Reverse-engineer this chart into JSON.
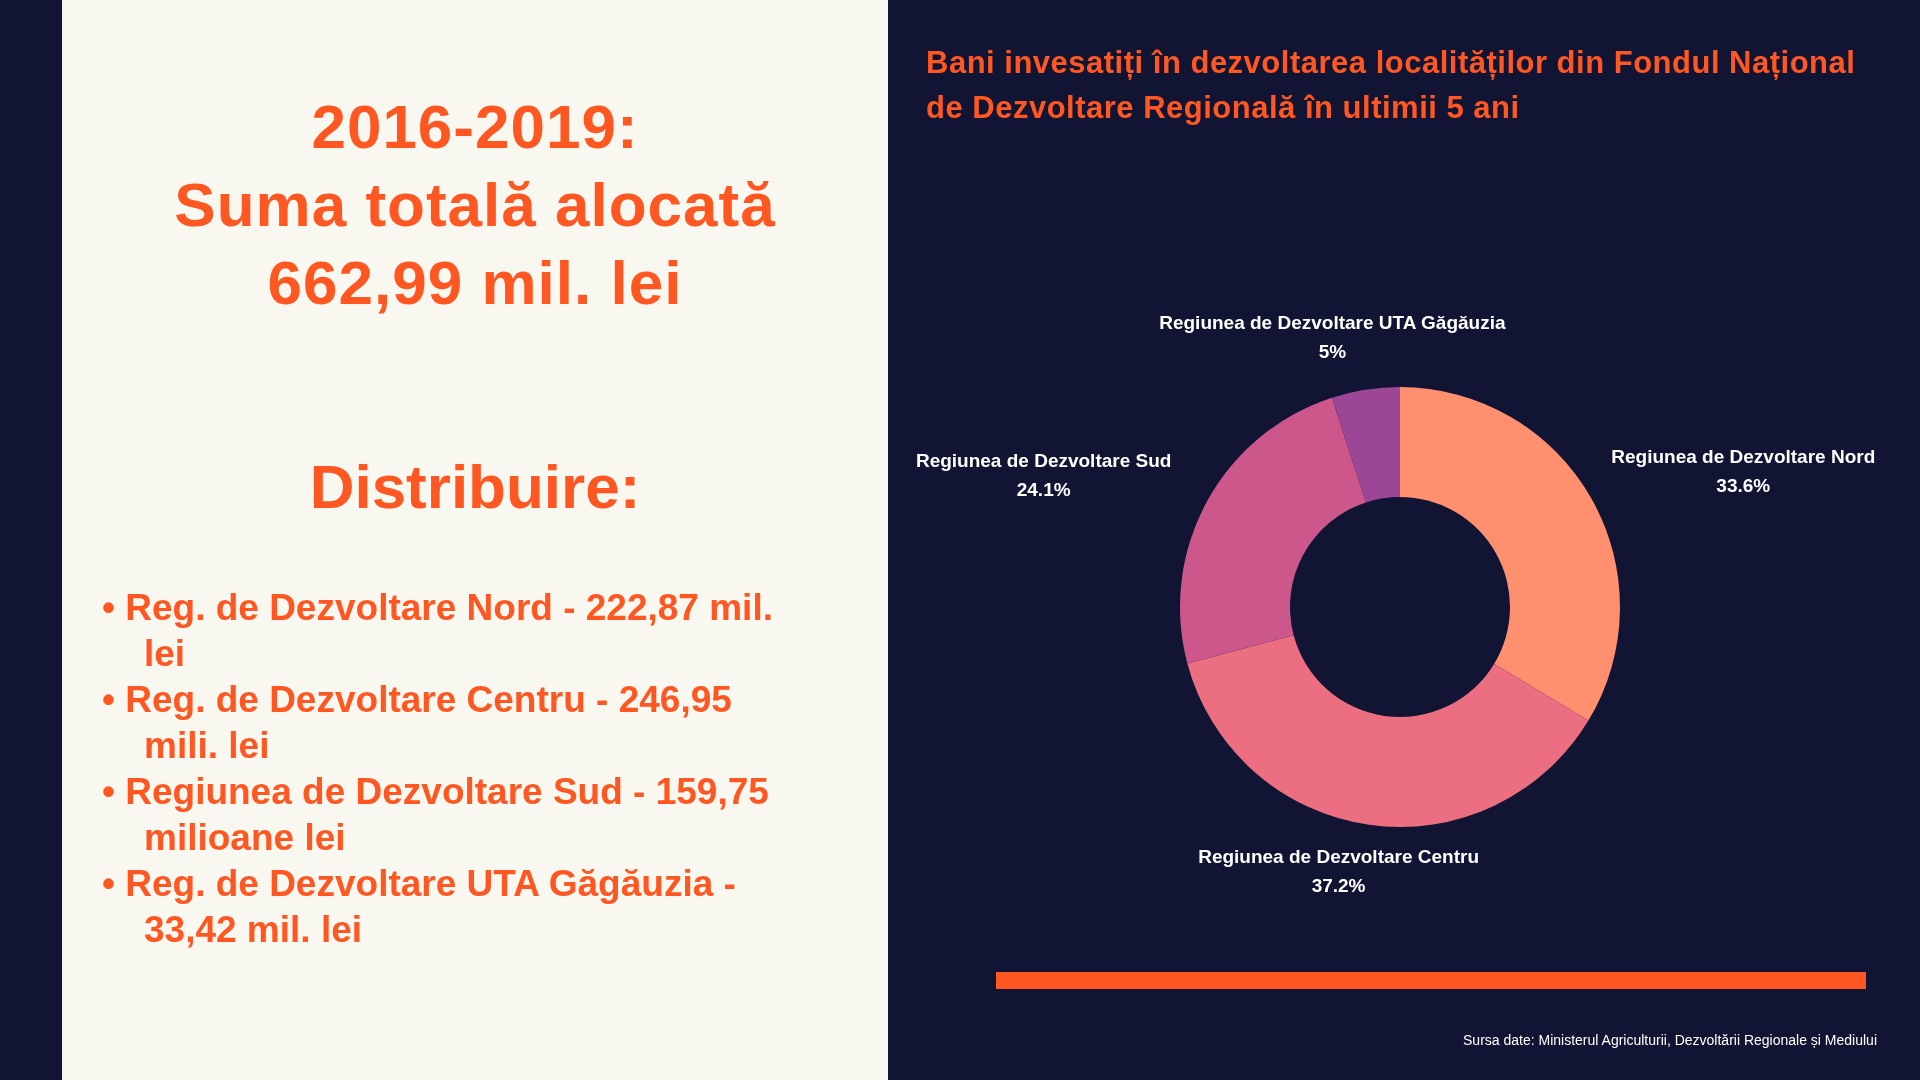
{
  "chart_data": [
    {
      "type": "other",
      "title": "2016-2019:\nSuma totală alocată\n662,99 mil. lei",
      "subtitle": "Distribuire:",
      "annotations": [
        "• Reg. de Dezvoltare Nord - 222,87 mil. lei",
        "• Reg. de Dezvoltare Centru - 246,95 mili. lei",
        "• Regiunea de Dezvoltare Sud - 159,75 milioane lei",
        "• Reg. de Dezvoltare UTA Găgăuzia - 33,42 mil. lei"
      ]
    },
    {
      "type": "donut",
      "title": "Bani invesatiți în dezvoltarea localităților din Fondul Național de Dezvoltare Regională în ultimii 5 ani",
      "categories": [
        "Regiunea de Dezvoltare Nord",
        "Regiunea de Dezvoltare Centru",
        "Regiunea de Dezvoltare Sud",
        "Regiunea de Dezvoltare UTA Găgăuzia"
      ],
      "values": [
        33.6,
        37.2,
        24.1,
        5
      ],
      "colors": [
        "#fe9070",
        "#eb6f80",
        "#cb578b",
        "#9b4795"
      ],
      "value_labels": [
        "33.6%",
        "37.2%",
        "24.1%",
        "5%"
      ],
      "annotations": [
        "Sursa date: Ministerul Agriculturii, Dezvoltării Regionale și Mediului"
      ]
    }
  ]
}
